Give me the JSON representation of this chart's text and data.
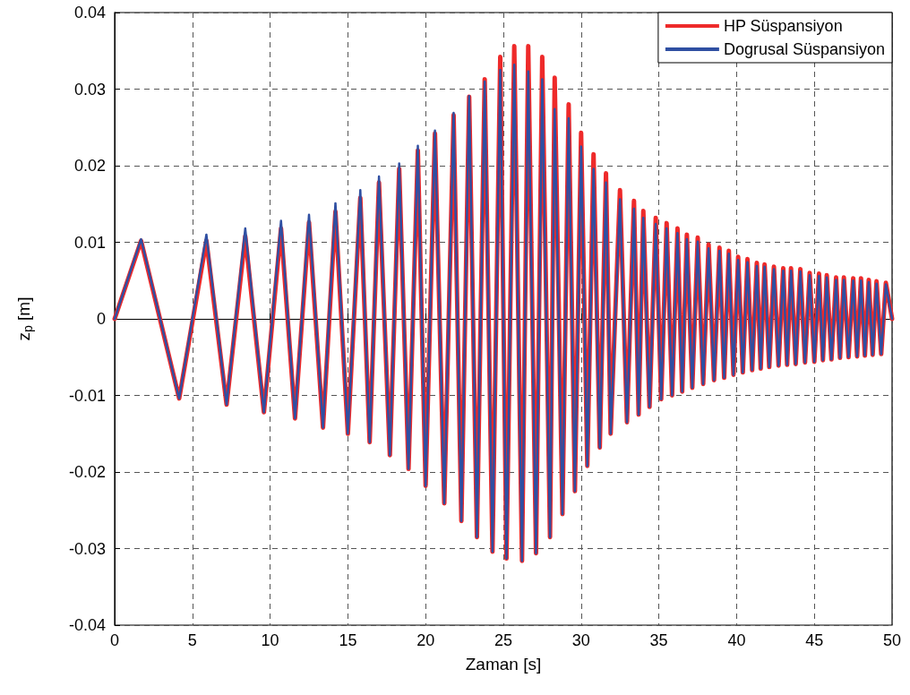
{
  "chart_data": {
    "type": "line",
    "xlabel": "Zaman [s]",
    "ylabel": "z$_{p}$ [m]",
    "xlim": [
      0,
      50
    ],
    "xticks": [
      0,
      5,
      10,
      15,
      20,
      25,
      30,
      35,
      40,
      45,
      50
    ],
    "ylim": [
      -0.04,
      0.04
    ],
    "yticks": [
      -0.04,
      -0.03,
      -0.02,
      -0.01,
      0,
      0.01,
      0.02,
      0.03,
      0.04
    ],
    "grid": true,
    "legend": "top right",
    "marker": "none",
    "line_style": "solid",
    "x": [
      0,
      1.7,
      4.15,
      5.9,
      7.2,
      8.4,
      9.6,
      10.7,
      11.6,
      12.5,
      13.4,
      14.2,
      15.0,
      15.8,
      16.4,
      17.0,
      17.7,
      18.3,
      18.9,
      19.5,
      20.0,
      20.6,
      21.2,
      21.8,
      22.3,
      22.8,
      23.3,
      23.8,
      24.3,
      24.8,
      25.2,
      25.7,
      26.2,
      26.6,
      27.1,
      27.5,
      28.0,
      28.3,
      28.8,
      29.2,
      29.6,
      30.0,
      30.4,
      30.8,
      31.2,
      31.6,
      31.9,
      32.5,
      32.95,
      33.4,
      33.7,
      34.0,
      34.4,
      34.8,
      35.15,
      35.5,
      35.85,
      36.2,
      36.5,
      36.8,
      37.15,
      37.5,
      37.85,
      38.2,
      38.55,
      38.9,
      39.2,
      39.5,
      39.8,
      40.1,
      40.4,
      40.7,
      41.0,
      41.3,
      41.55,
      41.8,
      42.1,
      42.4,
      42.7,
      43.0,
      43.25,
      43.5,
      43.8,
      44.1,
      44.4,
      44.7,
      45.0,
      45.3,
      45.55,
      45.8,
      46.1,
      46.4,
      46.65,
      46.9,
      47.2,
      47.5,
      47.75,
      48.0,
      48.25,
      48.5,
      48.75,
      49.0,
      49.3,
      49.6,
      50
    ],
    "series": [
      {
        "name": "HP Süspansiyon",
        "color": "#ee2a2a",
        "values": [
          0,
          0.0102,
          -0.0104,
          0.0102,
          -0.0112,
          0.0108,
          -0.0122,
          0.0118,
          -0.013,
          0.0126,
          -0.0142,
          0.014,
          -0.015,
          0.0158,
          -0.0161,
          0.0178,
          -0.0178,
          0.0196,
          -0.0196,
          0.022,
          -0.0218,
          0.0242,
          -0.0241,
          0.0266,
          -0.0264,
          0.029,
          -0.0285,
          0.0313,
          -0.0304,
          0.0342,
          -0.0313,
          0.0356,
          -0.0316,
          0.0356,
          -0.0306,
          0.0342,
          -0.0285,
          0.0315,
          -0.0255,
          0.028,
          -0.0225,
          0.0243,
          -0.0192,
          0.0215,
          -0.0168,
          0.019,
          -0.015,
          0.0168,
          -0.0135,
          0.0154,
          -0.0125,
          0.0141,
          -0.0115,
          0.0132,
          -0.0105,
          0.0125,
          -0.01,
          0.0118,
          -0.0095,
          0.011,
          -0.009,
          0.0106,
          -0.0085,
          0.0097,
          -0.008,
          0.0093,
          -0.0077,
          0.0089,
          -0.0073,
          0.0081,
          -0.007,
          0.0078,
          -0.0067,
          0.0073,
          -0.0065,
          0.0071,
          -0.0063,
          0.0068,
          -0.0061,
          0.0066,
          -0.006,
          0.0066,
          -0.0059,
          0.0065,
          -0.0057,
          0.006,
          -0.0056,
          0.0059,
          -0.0054,
          0.0057,
          -0.0053,
          0.0054,
          -0.0051,
          0.0054,
          -0.005,
          0.0053,
          -0.0049,
          0.0053,
          -0.0048,
          0.0051,
          -0.0047,
          0.0049,
          -0.0046,
          0.0047,
          0
        ]
      },
      {
        "name": "Dogrusal Süspansiyon",
        "color": "#2f4fa2",
        "values": [
          0,
          0.0104,
          -0.0104,
          0.011,
          -0.0112,
          0.0118,
          -0.0122,
          0.0128,
          -0.013,
          0.0136,
          -0.0142,
          0.0151,
          -0.015,
          0.0168,
          -0.0161,
          0.0186,
          -0.0178,
          0.0203,
          -0.0196,
          0.0226,
          -0.0218,
          0.0246,
          -0.0241,
          0.0269,
          -0.0264,
          0.0291,
          -0.0285,
          0.031,
          -0.0304,
          0.0325,
          -0.0313,
          0.0332,
          -0.0316,
          0.0323,
          -0.0306,
          0.0313,
          -0.0285,
          0.0274,
          -0.0255,
          0.0262,
          -0.0225,
          0.0225,
          -0.0192,
          0.0196,
          -0.0168,
          0.0178,
          -0.015,
          0.0156,
          -0.0135,
          0.0144,
          -0.0125,
          0.0132,
          -0.0115,
          0.0124,
          -0.0105,
          0.0118,
          -0.01,
          0.0112,
          -0.0095,
          0.0104,
          -0.009,
          0.0101,
          -0.0085,
          0.0092,
          -0.008,
          0.0089,
          -0.0077,
          0.0085,
          -0.0073,
          0.0077,
          -0.007,
          0.0074,
          -0.0067,
          0.0069,
          -0.0065,
          0.0068,
          -0.0063,
          0.0065,
          -0.0061,
          0.0063,
          -0.006,
          0.0063,
          -0.0059,
          0.0062,
          -0.0057,
          0.0057,
          -0.0056,
          0.0056,
          -0.0054,
          0.0054,
          -0.0053,
          0.0051,
          -0.0051,
          0.0051,
          -0.005,
          0.005,
          -0.0049,
          0.005,
          -0.0048,
          0.0048,
          -0.0047,
          0.0046,
          -0.0046,
          0.0045,
          0
        ]
      }
    ]
  }
}
